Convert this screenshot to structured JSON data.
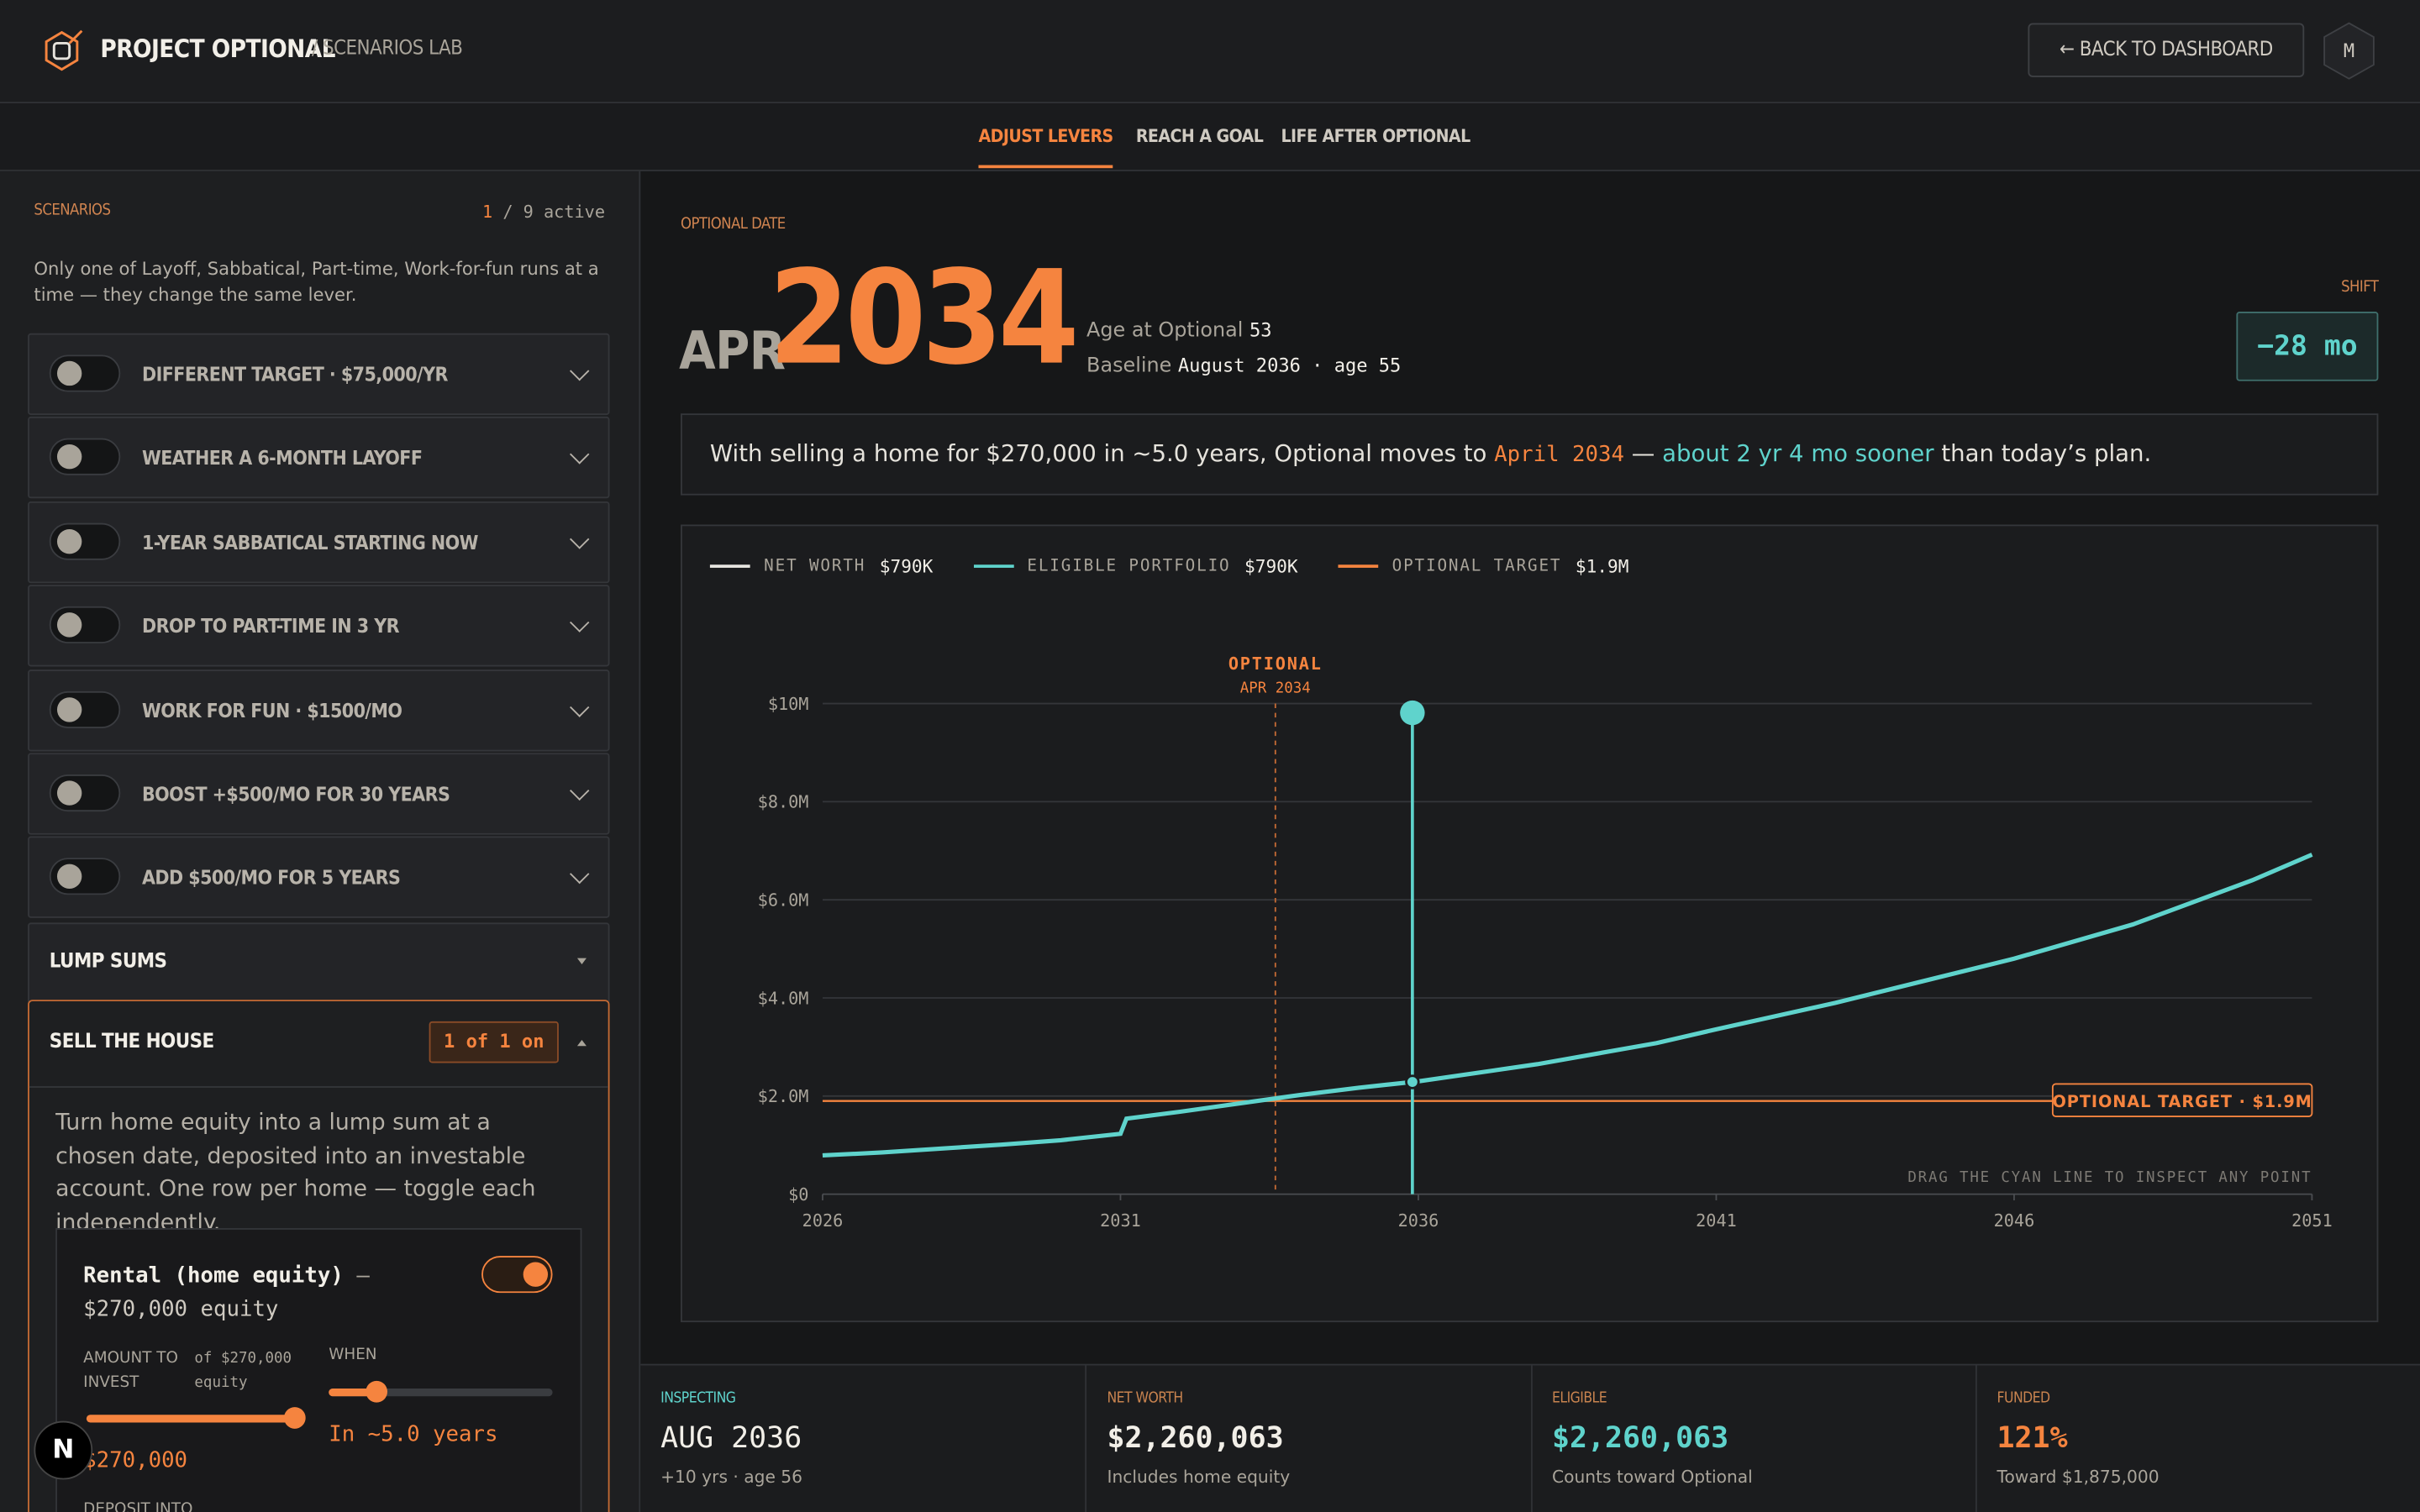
{
  "header": {
    "brand": "PROJECT OPTIONAL",
    "section": "/ SCENARIOS LAB",
    "back_button": "← BACK TO DASHBOARD",
    "avatar": "M"
  },
  "tabs": [
    "ADJUST LEVERS",
    "REACH A GOAL",
    "LIFE AFTER OPTIONAL"
  ],
  "sidebar": {
    "heading": "SCENARIOS",
    "active_count": "1",
    "active_total": "/ 9 active",
    "note": "Only one of Layoff, Sabbatical, Part-time, Work-for-fun runs at a time — they change the same lever.",
    "scenarios": [
      "DIFFERENT TARGET · $75,000/YR",
      "WEATHER A 6-MONTH LAYOFF",
      "1-YEAR SABBATICAL STARTING NOW",
      "DROP TO PART-TIME IN 3 YR",
      "WORK FOR FUN · $1500/MO",
      "BOOST +$500/MO FOR 30 YEARS",
      "ADD $500/MO FOR 5 YEARS"
    ],
    "lump_sums": "LUMP SUMS",
    "sell_house": {
      "title": "SELL THE HOUSE",
      "badge": "1 of 1 on",
      "description": "Turn home equity into a lump sum at a chosen date, deposited into an investable account. One row per home — toggle each independently.",
      "home": {
        "name": "Rental (home equity)",
        "dash": "—",
        "equity": "$270,000 equity",
        "amount_label": "AMOUNT TO INVEST",
        "amount_of": "of $270,000 equity",
        "amount_value": "$270,000",
        "when_label": "WHEN",
        "when_value": "In ~5.0 years",
        "deposit_label": "DEPOSIT INTO"
      }
    }
  },
  "summary": {
    "label": "OPTIONAL DATE",
    "month": "APR",
    "year": "2034",
    "age_label": "Age at Optional",
    "age": "53",
    "baseline_label": "Baseline",
    "baseline": "August 2036 · age 55",
    "shift_label": "SHIFT",
    "shift": "−28 mo"
  },
  "message": {
    "prefix": "With selling a home for $270,000 in ~5.0 years, Optional moves to",
    "date": "April 2034",
    "dash": "—",
    "sooner": "about 2 yr 4 mo sooner",
    "suffix": "than today’s plan."
  },
  "chart_data": {
    "type": "line",
    "x": [
      2026,
      2027,
      2028,
      2029,
      2030,
      2031,
      2031.1,
      2032,
      2033,
      2034,
      2035,
      2036,
      2038,
      2040,
      2041,
      2043,
      2046,
      2048,
      2050,
      2051
    ],
    "series": [
      {
        "name": "NET WORTH",
        "color": "#e8e6e1",
        "legend_value": "$790K",
        "values": [
          790000,
          850000,
          930000,
          1010000,
          1100000,
          1230000,
          1540000,
          1680000,
          1850000,
          2020000,
          2170000,
          2300000,
          2650000,
          3080000,
          3360000,
          3900000,
          4800000,
          5500000,
          6400000,
          6920000
        ]
      },
      {
        "name": "ELIGIBLE PORTFOLIO",
        "color": "#5fd3cc",
        "legend_value": "$790K",
        "values": [
          790000,
          850000,
          930000,
          1010000,
          1100000,
          1230000,
          1540000,
          1680000,
          1850000,
          2020000,
          2170000,
          2300000,
          2650000,
          3080000,
          3360000,
          3900000,
          4800000,
          5500000,
          6400000,
          6920000
        ]
      }
    ],
    "target": {
      "name": "OPTIONAL TARGET",
      "legend_value": "$1.9M",
      "value": 1900000,
      "label": "OPTIONAL TARGET · $1.9M",
      "color": "#f5843f"
    },
    "optional_marker": {
      "label": "OPTIONAL",
      "date": "APR 2034",
      "x": 2033.6
    },
    "inspect_x": 2035.9,
    "hint": "DRAG THE CYAN LINE TO INSPECT ANY POINT",
    "xlim": [
      2026,
      2051
    ],
    "xticks": [
      2026,
      2031,
      2036,
      2041,
      2046,
      2051
    ],
    "ylim": [
      0,
      10000000
    ],
    "yticks": [
      {
        "value": 0,
        "label": "$0"
      },
      {
        "value": 2000000,
        "label": "$2.0M"
      },
      {
        "value": 4000000,
        "label": "$4.0M"
      },
      {
        "value": 6000000,
        "label": "$6.0M"
      },
      {
        "value": 8000000,
        "label": "$8.0M"
      },
      {
        "value": 10000000,
        "label": "$10M"
      }
    ],
    "grid": true
  },
  "stats": [
    {
      "label": "INSPECTING",
      "value": "AUG 2036",
      "note": "+10 yrs · age 56"
    },
    {
      "label": "NET WORTH",
      "value": "$2,260,063",
      "note": "Includes home equity"
    },
    {
      "label": "ELIGIBLE",
      "value": "$2,260,063",
      "note": "Counts toward Optional"
    },
    {
      "label": "FUNDED",
      "value": "121%",
      "note": "Toward $1,875,000"
    }
  ],
  "dev_badge": "N"
}
